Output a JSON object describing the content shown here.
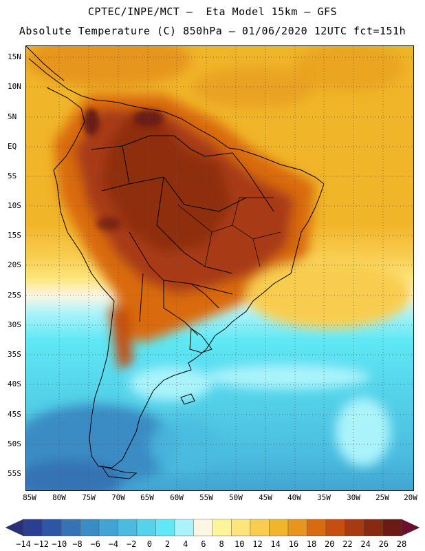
{
  "title": {
    "line1": "CPTEC/INPE/MCT –  Eta Model 15km – GFS",
    "line2": "Absolute Temperature (C) 850hPa – 01/06/2020 12UTC fct=151h"
  },
  "map": {
    "lat_labels": [
      "15N",
      "10N",
      "5N",
      "EQ",
      "5S",
      "10S",
      "15S",
      "20S",
      "25S",
      "30S",
      "35S",
      "40S",
      "45S",
      "50S",
      "55S"
    ],
    "lon_labels": [
      "85W",
      "80W",
      "75W",
      "70W",
      "65W",
      "60W",
      "55W",
      "50W",
      "45W",
      "40W",
      "35W",
      "30W",
      "25W",
      "20W"
    ]
  },
  "colorbar": {
    "colors": [
      "#2a3f8f",
      "#2f56a3",
      "#3573b5",
      "#3a8cc4",
      "#41a4d2",
      "#4bbcdf",
      "#54d3ea",
      "#5fe8f5",
      "#aaf3fb",
      "#fdf6e3",
      "#fdf59a",
      "#fde57a",
      "#f8cd50",
      "#f1b52a",
      "#e6961a",
      "#d96a0e",
      "#c54e10",
      "#a83a12",
      "#882a12",
      "#6b1a14"
    ],
    "left_arrow_color": "#2a2f7a",
    "right_arrow_color": "#6b0f2f",
    "labels": [
      "-14",
      "-12",
      "-10",
      "-8",
      "-6",
      "-4",
      "-2",
      "0",
      "2",
      "4",
      "6",
      "8",
      "10",
      "12",
      "14",
      "16",
      "18",
      "20",
      "22",
      "24",
      "26",
      "28"
    ]
  }
}
